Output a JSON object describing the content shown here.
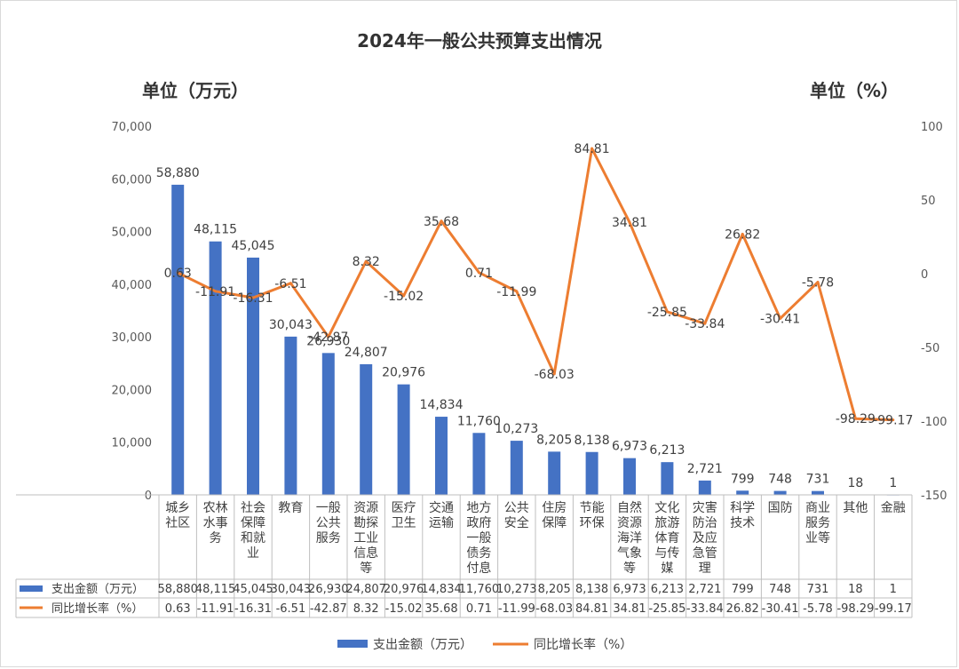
{
  "chart_data": {
    "type": "bar",
    "title": "2024年一般公共预算支出情况",
    "left_unit_label": "单位（万元）",
    "right_unit_label": "单位（%）",
    "categories": [
      [
        "城乡",
        "社区"
      ],
      [
        "农林",
        "水事",
        "务"
      ],
      [
        "社会",
        "保障",
        "和就",
        "业"
      ],
      [
        "教育"
      ],
      [
        "一般",
        "公共",
        "服务"
      ],
      [
        "资源",
        "勘探",
        "工业",
        "信息",
        "等"
      ],
      [
        "医疗",
        "卫生"
      ],
      [
        "交通",
        "运输"
      ],
      [
        "地方",
        "政府",
        "一般",
        "债务",
        "付息"
      ],
      [
        "公共",
        "安全"
      ],
      [
        "住房",
        "保障"
      ],
      [
        "节能",
        "环保"
      ],
      [
        "自然",
        "资源",
        "海洋",
        "气象",
        "等"
      ],
      [
        "文化",
        "旅游",
        "体育",
        "与传",
        "媒"
      ],
      [
        "灾害",
        "防治",
        "及应",
        "急管",
        "理"
      ],
      [
        "科学",
        "技术"
      ],
      [
        "国防"
      ],
      [
        "商业",
        "服务",
        "业等"
      ],
      [
        "其他"
      ],
      [
        "金融"
      ]
    ],
    "series": [
      {
        "name": "支出金额（万元）",
        "type": "bar",
        "axis": "left",
        "color": "#4472C4",
        "values": [
          58880,
          48115,
          45045,
          30043,
          26930,
          24807,
          20976,
          14834,
          11760,
          10273,
          8205,
          8138,
          6973,
          6213,
          2721,
          799,
          748,
          731,
          18,
          1
        ],
        "labels": [
          "58,880",
          "48,115",
          "45,045",
          "30,043",
          "26,930",
          "24,807",
          "20,976",
          "14,834",
          "11,760",
          "10,273",
          "8,205",
          "8,138",
          "6,973",
          "6,213",
          "2,721",
          "799",
          "748",
          "731",
          "18",
          "1"
        ],
        "table_labels": [
          "58,880",
          "48,115",
          "45,045",
          "30,043",
          "26,930",
          "24,807",
          "20,976",
          "14,834",
          "11,760",
          "10,273",
          "8,205",
          "8,138",
          "6,973",
          "6,213",
          "2,721",
          "799",
          "748",
          "731",
          "18",
          "1"
        ]
      },
      {
        "name": "同比增长率（%）",
        "type": "line",
        "axis": "right",
        "color": "#ED7D31",
        "values": [
          0.63,
          -11.91,
          -16.31,
          -6.51,
          -42.87,
          8.32,
          -15.02,
          35.68,
          0.71,
          -11.99,
          -68.03,
          84.81,
          34.81,
          -25.85,
          -33.84,
          26.82,
          -30.41,
          -5.78,
          -98.29,
          -99.17
        ],
        "labels": [
          "0.63",
          "-11.91",
          "-16.31",
          "-6.51",
          "-42.87",
          "8.32",
          "-15.02",
          "35.68",
          "0.71",
          "-11.99",
          "-68.03",
          "84.81",
          "34.81",
          "-25.85",
          "-33.84",
          "26.82",
          "-30.41",
          "-5.78",
          "-98.29",
          "-99.17"
        ],
        "table_labels": [
          "0.63",
          "-11.91",
          "-16.31",
          "-6.51",
          "-42.87",
          "8.32",
          "-15.02",
          "35.68",
          "0.71",
          "-11.99",
          "-68.03",
          "84.81",
          "34.81",
          "-25.85",
          "-33.84",
          "26.82",
          "-30.41",
          "-5.78",
          "-98.29",
          "-99.17"
        ]
      }
    ],
    "y_left": {
      "lim": [
        0,
        70000
      ],
      "ticks": [
        "0",
        "10,000",
        "20,000",
        "30,000",
        "40,000",
        "50,000",
        "60,000",
        "70,000"
      ],
      "tick_values": [
        0,
        10000,
        20000,
        30000,
        40000,
        50000,
        60000,
        70000
      ]
    },
    "y_right": {
      "lim": [
        -150,
        100
      ],
      "ticks": [
        "-150",
        "-100",
        "-50",
        "0",
        "50",
        "100"
      ],
      "tick_values": [
        -150,
        -100,
        -50,
        0,
        50,
        100
      ]
    },
    "grid": false,
    "data_table": true,
    "legend_position": "bottom"
  }
}
